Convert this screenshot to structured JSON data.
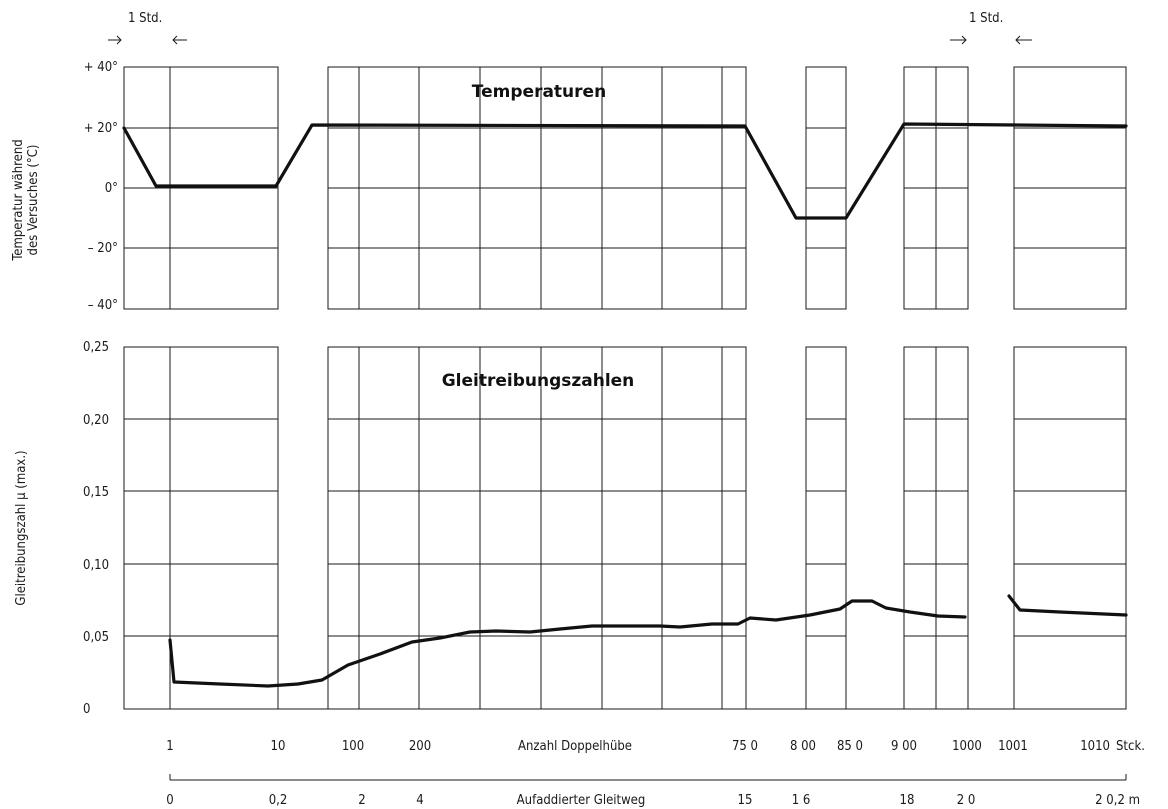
{
  "chart_data": [
    {
      "type": "line",
      "title": "Temperaturen",
      "ylabel_lines": [
        "Temperatur während",
        "des Versuches (°C)"
      ],
      "ylim": [
        -40,
        40
      ],
      "ytick_labels": [
        "+ 40°",
        "+ 20°",
        "0°",
        "– 20°",
        "– 40°"
      ],
      "xlabel": "Anzahl Doppelhübe",
      "series": [
        {
          "values": [
            {
              "x": "start",
              "y": 19
            },
            {
              "x": "start+1h",
              "y": 0
            },
            {
              "x": "10",
              "y": 0
            },
            {
              "x": "after 10",
              "y": 21
            },
            {
              "x": "750",
              "y": 20
            },
            {
              "x": "800",
              "y": -10
            },
            {
              "x": "~840",
              "y": -10
            },
            {
              "x": "900",
              "y": 21
            },
            {
              "x": "1010",
              "y": 20
            }
          ]
        }
      ]
    },
    {
      "type": "line",
      "title": "Gleitreibungszahlen",
      "ylabel": "Gleitreibungszahl μ (max.)",
      "ylim": [
        0,
        0.25
      ],
      "ytick_labels": [
        "0,25",
        "0,20",
        "0,15",
        "0,10",
        "0,05",
        "0"
      ],
      "xlabel": "Anzahl Doppelhübe",
      "x2label": "Aufaddierter Gleitweg",
      "series": [
        {
          "values": [
            {
              "x": "1",
              "y": 0.048
            },
            {
              "x": "1",
              "y": 0.019
            },
            {
              "x": "10",
              "y": 0.016
            },
            {
              "x": "100",
              "y": 0.03
            },
            {
              "x": "200",
              "y": 0.046
            },
            {
              "x": "500",
              "y": 0.055
            },
            {
              "x": "750",
              "y": 0.06
            },
            {
              "x": "800",
              "y": 0.063
            },
            {
              "x": "850",
              "y": 0.075
            },
            {
              "x": "900",
              "y": 0.069
            },
            {
              "x": "1000",
              "y": 0.063
            },
            {
              "x": "1001",
              "y": 0.078
            },
            {
              "x": "1001",
              "y": 0.068
            },
            {
              "x": "1010",
              "y": 0.065
            }
          ]
        }
      ]
    }
  ],
  "annotations": {
    "std_left": "1 Std.",
    "std_right": "1 Std."
  },
  "x_axis": {
    "ticks": [
      "1",
      "10",
      "100",
      "200",
      "750",
      "800",
      "850",
      "900",
      "1000",
      "1001",
      "1010"
    ],
    "ticks_display": [
      "1",
      "10",
      "100",
      "200",
      "75 0",
      "8 00",
      "85 0",
      "9 00",
      "1000",
      "1001",
      "1010"
    ],
    "label": "Anzahl Doppelhübe",
    "unit": "Stck."
  },
  "x2_axis": {
    "ticks": [
      "0",
      "0,2",
      "2",
      "4",
      "15",
      "16",
      "18",
      "20",
      "20,2 m"
    ],
    "ticks_display": [
      "0",
      "0,2",
      "2",
      "4",
      "15",
      "1 6",
      "18",
      "2 0",
      "2 0,2 m"
    ],
    "label": "Aufaddierter Gleitweg"
  }
}
